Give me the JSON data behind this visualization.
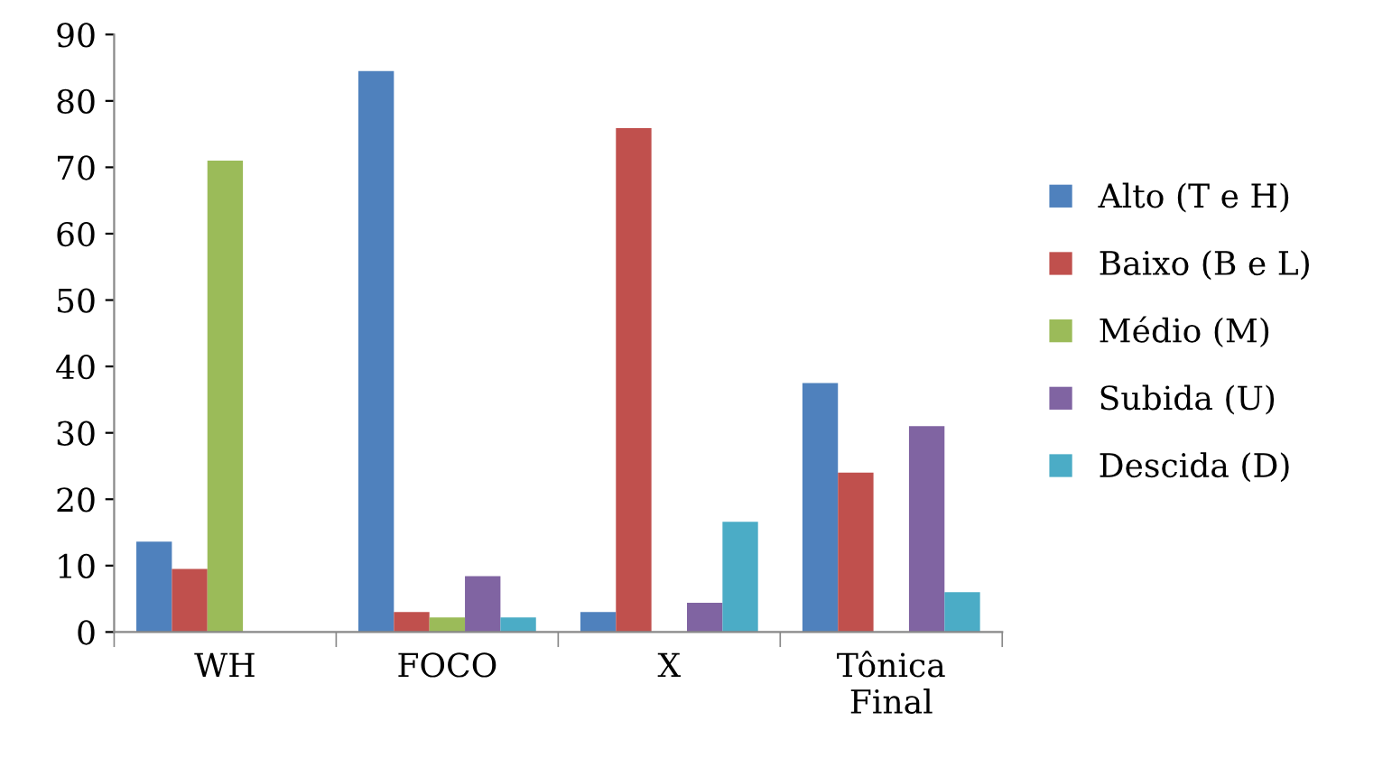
{
  "chart_data": {
    "type": "bar",
    "categories": [
      "WH",
      "FOCO",
      "X",
      "Tônica Final"
    ],
    "series": [
      {
        "name": "Alto (T e H)",
        "color": "#4f81bd",
        "values": [
          13.6,
          84.5,
          3,
          37.5
        ]
      },
      {
        "name": "Baixo (B e L)",
        "color": "#c0504d",
        "values": [
          9.5,
          3,
          75.9,
          24
        ]
      },
      {
        "name": "Médio (M)",
        "color": "#9bbb59",
        "values": [
          71,
          2.2,
          0,
          0
        ]
      },
      {
        "name": "Subida (U)",
        "color": "#8064a2",
        "values": [
          0,
          8.4,
          4.4,
          31
        ]
      },
      {
        "name": "Descida (D)",
        "color": "#4bacc6",
        "values": [
          0,
          2.2,
          16.6,
          6
        ]
      }
    ],
    "ylim": [
      0,
      90
    ],
    "yticks": [
      0,
      10,
      20,
      30,
      40,
      50,
      60,
      70,
      80,
      90
    ],
    "grid": false,
    "legend": "right"
  }
}
